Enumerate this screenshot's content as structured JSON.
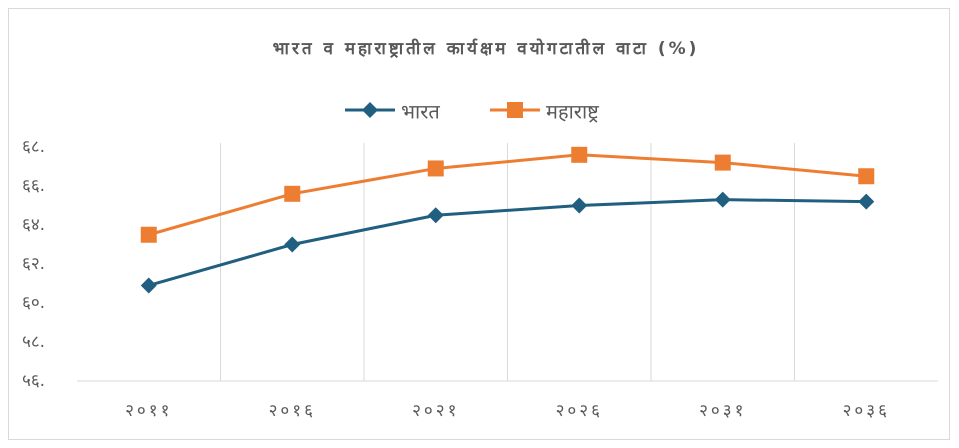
{
  "chart_data": {
    "type": "line",
    "title": "भारत व महाराष्ट्रातील कार्यक्षम वयोगटातील वाटा (%)",
    "categories": [
      "२०११",
      "२०१६",
      "२०२१",
      "२०२६",
      "२०३१",
      "२०३६"
    ],
    "series": [
      {
        "name": "भारत",
        "color": "#215f80",
        "marker": "diamond",
        "values": [
          60.9,
          63.0,
          64.5,
          65.0,
          65.3,
          65.2
        ]
      },
      {
        "name": "महाराष्ट्र",
        "color": "#ed7d31",
        "marker": "square",
        "values": [
          63.5,
          65.6,
          66.9,
          67.6,
          67.2,
          66.5
        ]
      }
    ],
    "ylim": [
      56,
      68
    ],
    "yticks": [
      {
        "value": 56,
        "label": "५६."
      },
      {
        "value": 58,
        "label": "५८."
      },
      {
        "value": 60,
        "label": "६०."
      },
      {
        "value": 62,
        "label": "६२."
      },
      {
        "value": 64,
        "label": "६४."
      },
      {
        "value": 66,
        "label": "६६."
      },
      {
        "value": 68,
        "label": "६८."
      }
    ],
    "legend": "top"
  }
}
